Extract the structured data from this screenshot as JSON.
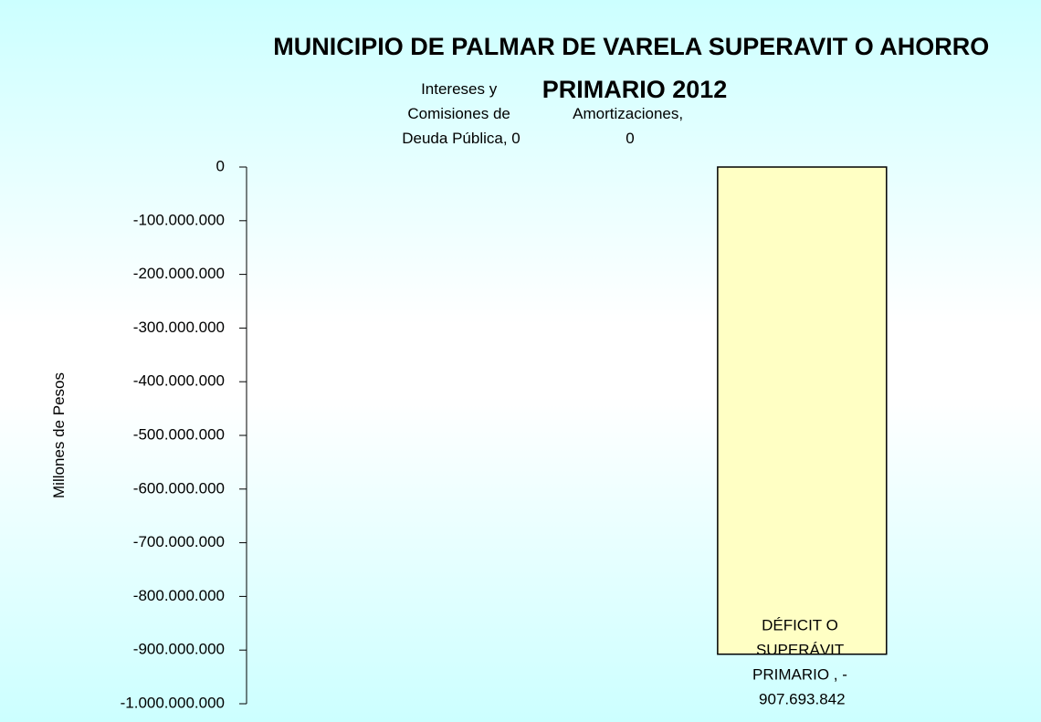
{
  "chart_data": {
    "type": "bar",
    "title": "MUNICIPIO DE PALMAR DE VARELA SUPERAVIT O AHORRO PRIMARIO 2012",
    "ylabel": "Millones de Pesos",
    "values": [
      0,
      0,
      -907693842
    ],
    "value_labels": [
      "Intereses y Comisiones de Deuda Pública, 0",
      "Amortizaciones, 0",
      "DÉFICIT O SUPERÁVIT PRIMARIO , - 907.693.842"
    ],
    "color": "#ffffc4",
    "ylim": [
      -1000000000,
      0
    ],
    "yticks": [
      0,
      {
        "value": -100000000,
        "label": "-100.000.000"
      },
      {
        "value": -200000000,
        "label": "-200.000.000"
      },
      {
        "value": -300000000,
        "label": "-300.000.000"
      },
      {
        "value": -400000000,
        "label": "-400.000.000"
      },
      {
        "value": -500000000,
        "label": "-500.000.000"
      },
      {
        "value": -600000000,
        "label": "-600.000.000"
      },
      {
        "value": -700000000,
        "label": "-700.000.000"
      },
      {
        "value": -800000000,
        "label": "-800.000.000"
      },
      {
        "value": -900000000,
        "label": "-900.000.000"
      },
      {
        "value": -1000000000,
        "label": "-1.000.000.000"
      }
    ],
    "grid": false
  }
}
